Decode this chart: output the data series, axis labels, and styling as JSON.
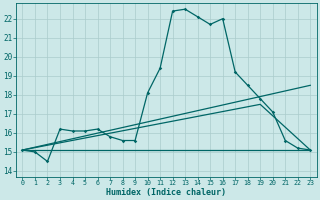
{
  "xlabel": "Humidex (Indice chaleur)",
  "bg_color": "#cce8e8",
  "grid_color": "#aacccc",
  "line_color": "#006666",
  "ylim": [
    13.7,
    22.8
  ],
  "xlim": [
    -0.5,
    23.5
  ],
  "yticks": [
    14,
    15,
    16,
    17,
    18,
    19,
    20,
    21,
    22
  ],
  "xticks": [
    0,
    1,
    2,
    3,
    4,
    5,
    6,
    7,
    8,
    9,
    10,
    11,
    12,
    13,
    14,
    15,
    16,
    17,
    18,
    19,
    20,
    21,
    22,
    23
  ],
  "line1_x": [
    0,
    1,
    2,
    3,
    4,
    5,
    6,
    7,
    8,
    9,
    10,
    11,
    12,
    13,
    14,
    15,
    16,
    17,
    18,
    19,
    20,
    21,
    22,
    23
  ],
  "line1_y": [
    15.1,
    15.0,
    14.5,
    16.2,
    16.1,
    16.1,
    16.2,
    15.8,
    15.6,
    15.6,
    18.1,
    19.4,
    22.4,
    22.5,
    22.1,
    21.7,
    22.0,
    19.2,
    18.5,
    17.8,
    17.1,
    15.6,
    15.2,
    15.1
  ],
  "line2_x": [
    0,
    23
  ],
  "line2_y": [
    15.1,
    18.5
  ],
  "line3_x": [
    0,
    19,
    23
  ],
  "line3_y": [
    15.1,
    17.5,
    15.1
  ],
  "line4_x": [
    0,
    23
  ],
  "line4_y": [
    15.1,
    15.1
  ]
}
